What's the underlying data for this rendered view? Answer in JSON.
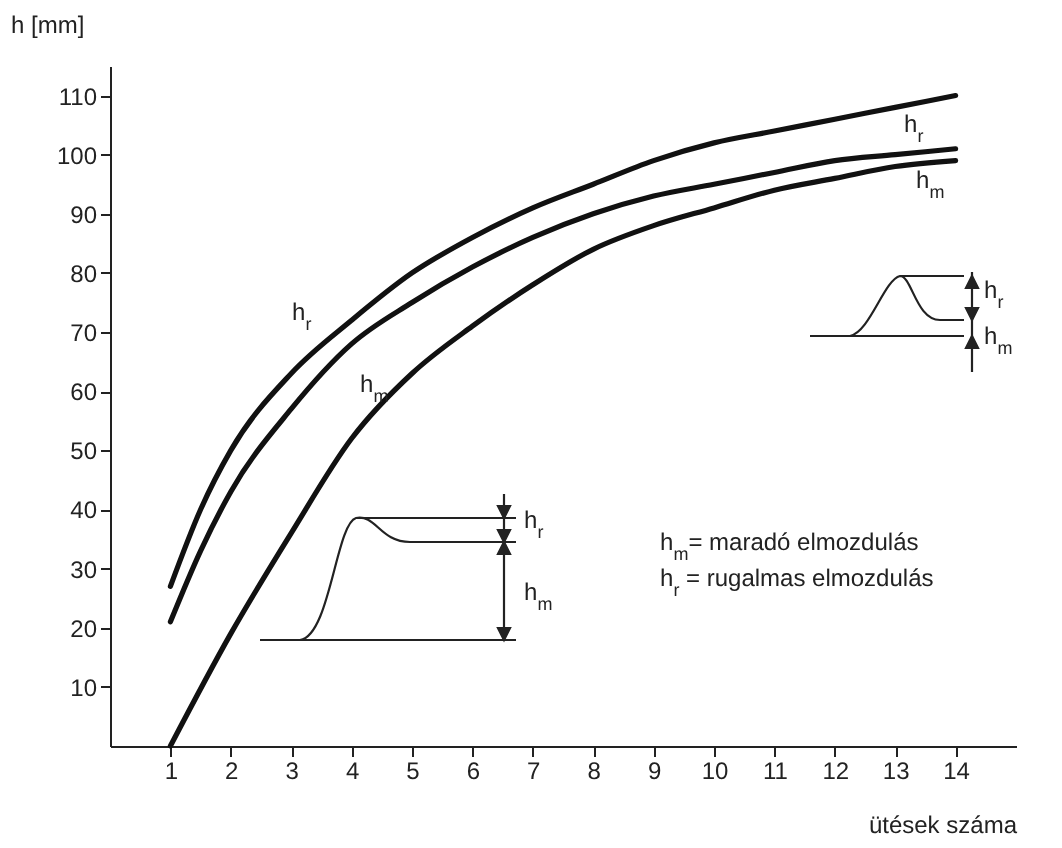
{
  "chart_data": {
    "type": "line",
    "xlabel": "ütések száma",
    "ylabel": "h [mm]",
    "x": [
      1,
      1.5,
      2,
      3,
      4,
      5,
      6,
      7,
      8,
      9,
      10,
      11,
      12,
      13,
      14
    ],
    "series": [
      {
        "color": "#111111",
        "values": [
          27,
          40,
          50,
          63,
          72,
          80,
          86,
          91,
          95,
          99,
          102,
          104,
          106,
          108,
          110
        ]
      },
      {
        "color": "#111111",
        "values": [
          21,
          33,
          43,
          57,
          68,
          75,
          81,
          86,
          90,
          93,
          95,
          97,
          99,
          100,
          101
        ]
      },
      {
        "color": "#111111",
        "x": [
          1,
          2,
          3,
          4,
          5,
          6,
          7,
          8,
          9,
          10,
          11,
          12,
          13,
          14
        ],
        "values": [
          0,
          19,
          36,
          52,
          63,
          71,
          78,
          84,
          88,
          91,
          94,
          96,
          98,
          99
        ]
      }
    ],
    "xlim": [
      0,
      15
    ],
    "ylim": [
      0,
      115
    ],
    "xticks": [
      1,
      2,
      3,
      4,
      5,
      6,
      7,
      8,
      9,
      10,
      11,
      12,
      13,
      14
    ],
    "yticks": [
      10,
      20,
      30,
      40,
      50,
      60,
      70,
      80,
      90,
      100,
      110
    ],
    "line_style": "solid",
    "annotations": [
      "h$_{m}$= maradó elmozdulás",
      "h$_{r}$ = rugalmas elmozdulás",
      "h$_{r}$",
      "h$_{m}$",
      "h$_{r}$",
      "h$_{m}$",
      "h$_{r}$",
      "h$_{m}$",
      "h$_{r}$",
      "h$_{m}$"
    ]
  }
}
